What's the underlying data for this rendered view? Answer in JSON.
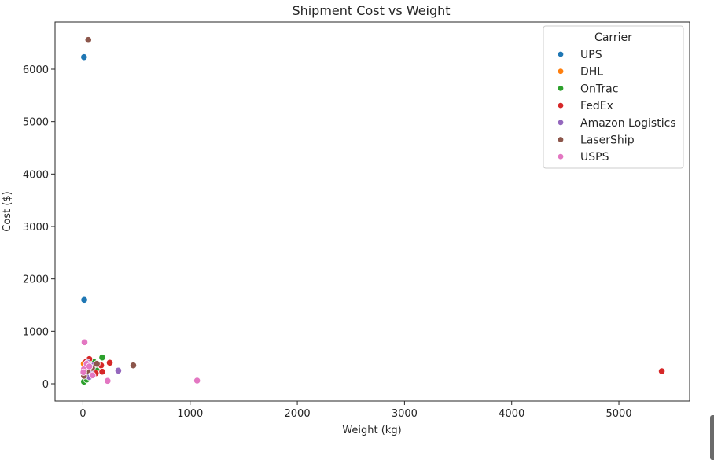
{
  "chart_data": {
    "type": "scatter",
    "title": "Shipment Cost vs Weight",
    "xlabel": "Weight (kg)",
    "ylabel": "Cost ($)",
    "xlim": [
      -260,
      5660
    ],
    "ylim": [
      -330,
      6900
    ],
    "xticks": [
      0,
      1000,
      2000,
      3000,
      4000,
      5000
    ],
    "yticks": [
      0,
      1000,
      2000,
      3000,
      4000,
      5000,
      6000
    ],
    "grid": false,
    "legend": {
      "title": "Carrier",
      "position": "top-right"
    },
    "series": [
      {
        "name": "UPS",
        "color": "#1f77b4",
        "points": [
          [
            10,
            6230
          ],
          [
            12,
            1600
          ],
          [
            30,
            330
          ],
          [
            55,
            270
          ],
          [
            80,
            360
          ],
          [
            20,
            150
          ],
          [
            65,
            420
          ],
          [
            95,
            300
          ]
        ]
      },
      {
        "name": "DHL",
        "color": "#ff7f0e",
        "points": [
          [
            8,
            380
          ],
          [
            25,
            300
          ],
          [
            45,
            400
          ],
          [
            60,
            250
          ],
          [
            90,
            330
          ],
          [
            15,
            200
          ],
          [
            110,
            280
          ],
          [
            35,
            360
          ]
        ]
      },
      {
        "name": "OnTrac",
        "color": "#2ca02c",
        "points": [
          [
            180,
            500
          ],
          [
            40,
            350
          ],
          [
            10,
            40
          ],
          [
            35,
            80
          ],
          [
            70,
            300
          ],
          [
            130,
            250
          ],
          [
            55,
            150
          ],
          [
            100,
            420
          ],
          [
            25,
            200
          ]
        ]
      },
      {
        "name": "FedEx",
        "color": "#d62728",
        "points": [
          [
            5400,
            240
          ],
          [
            250,
            400
          ],
          [
            170,
            350
          ],
          [
            180,
            230
          ],
          [
            60,
            470
          ],
          [
            120,
            200
          ],
          [
            30,
            420
          ],
          [
            80,
            310
          ]
        ]
      },
      {
        "name": "Amazon Logistics",
        "color": "#9467bd",
        "points": [
          [
            330,
            250
          ],
          [
            60,
            130
          ],
          [
            100,
            350
          ],
          [
            20,
            300
          ],
          [
            75,
            220
          ],
          [
            45,
            400
          ]
        ]
      },
      {
        "name": "LaserShip",
        "color": "#8c564b",
        "points": [
          [
            50,
            6560
          ],
          [
            470,
            350
          ],
          [
            10,
            150
          ],
          [
            85,
            300
          ],
          [
            40,
            250
          ],
          [
            130,
            380
          ]
        ]
      },
      {
        "name": "USPS",
        "color": "#e377c2",
        "points": [
          [
            1065,
            60
          ],
          [
            230,
            55
          ],
          [
            15,
            790
          ],
          [
            10,
            280
          ],
          [
            35,
            380
          ],
          [
            90,
            160
          ],
          [
            60,
            330
          ],
          [
            5,
            220
          ]
        ]
      }
    ]
  }
}
